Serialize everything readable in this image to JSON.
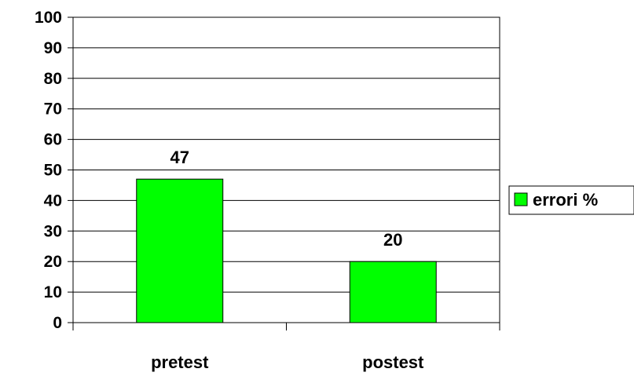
{
  "chart_data": {
    "type": "bar",
    "categories": [
      "pretest",
      "postest"
    ],
    "series": [
      {
        "name": "errori %",
        "values": [
          47,
          20
        ],
        "color": "#00ff00"
      }
    ],
    "data_labels": [
      "47",
      "20"
    ],
    "ylim": [
      0,
      100
    ],
    "yticks": [
      0,
      10,
      20,
      30,
      40,
      50,
      60,
      70,
      80,
      90,
      100
    ],
    "title": "",
    "xlabel": "",
    "ylabel": "",
    "grid": true,
    "legend_position": "right"
  }
}
